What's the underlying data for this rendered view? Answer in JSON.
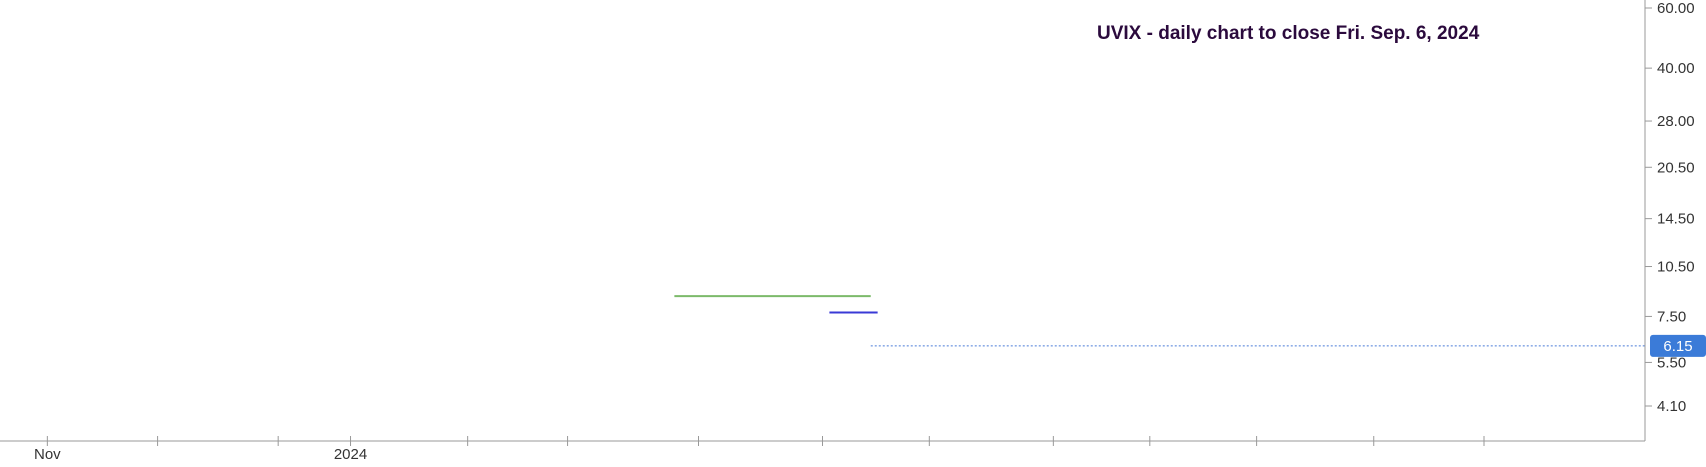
{
  "chart_data": {
    "type": "candlestick",
    "title": "UVIX - daily chart to close Fri. Sep. 6, 2024",
    "y_scale": "log",
    "ylim": [
      3.4,
      62
    ],
    "y_ticks": [
      {
        "value": 60,
        "label": "60.00"
      },
      {
        "value": 40,
        "label": "40.00"
      },
      {
        "value": 28,
        "label": "28.00"
      },
      {
        "value": 20.5,
        "label": "20.50"
      },
      {
        "value": 14.5,
        "label": "14.50"
      },
      {
        "value": 10.5,
        "label": "10.50"
      },
      {
        "value": 7.5,
        "label": "7.50"
      },
      {
        "value": 5.5,
        "label": "5.50"
      },
      {
        "value": 4.1,
        "label": "4.10"
      }
    ],
    "x_labels": [
      {
        "label": "Nov",
        "index": 12
      },
      {
        "label": "2024",
        "index": 100
      }
    ],
    "x_gridline_indices": [
      12,
      44,
      79,
      100,
      134,
      163,
      201,
      237,
      268,
      304,
      332,
      363,
      397,
      429
    ],
    "last_price": {
      "value": 6.15,
      "label": "6.15"
    },
    "annotations": [
      {
        "type": "support",
        "color": "#7cba6a",
        "value": 8.6,
        "from_index": 194,
        "to_index": 251
      },
      {
        "type": "resistance",
        "color": "#3a3ad6",
        "value": 7.7,
        "from_index": 239,
        "to_index": 253
      }
    ],
    "colors": {
      "up": "#1a9a5a",
      "down": "#c0392b",
      "last_price_bg": "#3b7bd8"
    },
    "x_range": [
      0,
      438
    ],
    "series": []
  }
}
